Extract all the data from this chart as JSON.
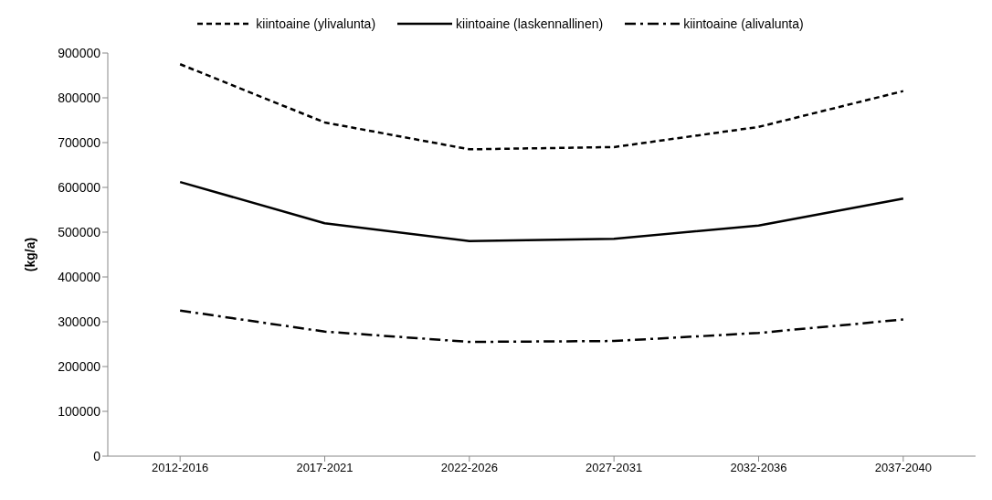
{
  "chart_data": {
    "type": "line",
    "ylabel": "(kg/a)",
    "categories": [
      "2012-2016",
      "2017-2021",
      "2022-2026",
      "2027-2031",
      "2032-2036",
      "2037-2040"
    ],
    "series": [
      {
        "name": "kiintoaine (ylivalunta)",
        "color": "#000000",
        "line_style": "dashed",
        "values": [
          875000,
          745000,
          685000,
          690000,
          735000,
          815000
        ]
      },
      {
        "name": "kiintoaine (laskennallinen)",
        "color": "#000000",
        "line_style": "solid",
        "values": [
          612000,
          520000,
          480000,
          485000,
          515000,
          575000
        ]
      },
      {
        "name": "kiintoaine (alivalunta)",
        "color": "#000000",
        "line_style": "dashdot",
        "values": [
          325000,
          278000,
          255000,
          257000,
          275000,
          305000
        ]
      }
    ],
    "ylim": [
      0,
      900000
    ],
    "yticks": [
      0,
      100000,
      200000,
      300000,
      400000,
      500000,
      600000,
      700000,
      800000,
      900000
    ],
    "grid": false,
    "legend": "top",
    "marker": "none"
  }
}
